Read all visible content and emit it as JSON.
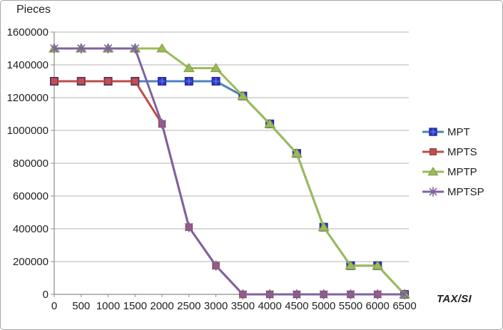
{
  "frame": {
    "background": "#ffffff",
    "border_color": "#a6a6a6",
    "gridline_color": "#b3b3b3",
    "axis_color": "#8c8c8c",
    "text_color": "#1f1f1f"
  },
  "chart_data": {
    "type": "line",
    "title": "",
    "ylabel": "Pieces",
    "xlabel": "TAX/SI",
    "x": [
      0,
      500,
      1000,
      1500,
      2000,
      2500,
      3000,
      3500,
      4000,
      4500,
      5000,
      5500,
      6000,
      6500
    ],
    "x_ticks": [
      0,
      500,
      1000,
      1500,
      2000,
      2500,
      3000,
      3500,
      4000,
      4500,
      5000,
      5500,
      6000,
      6500
    ],
    "y_ticks": [
      0,
      200000,
      400000,
      600000,
      800000,
      1000000,
      1200000,
      1400000,
      1600000
    ],
    "ylim": [
      0,
      1600000
    ],
    "grid": "horizontal",
    "legend_position": "right",
    "series": [
      {
        "name": "MPT",
        "color": "#4f81bd",
        "marker": "square-cross",
        "marker_fill": "#2b35c4",
        "marker_edge": "#1e2496",
        "marker_cross": "#5d74dc",
        "values": [
          1300000,
          1300000,
          1300000,
          1300000,
          1300000,
          1300000,
          1300000,
          1210000,
          1040000,
          860000,
          410000,
          175000,
          175000,
          0
        ]
      },
      {
        "name": "MPTS",
        "color": "#be4b48",
        "marker": "square",
        "marker_fill": "#c0504d",
        "marker_edge": "#8e3836",
        "values": [
          1300000,
          1300000,
          1300000,
          1300000,
          1040000,
          410000,
          175000,
          0,
          0,
          0,
          0,
          0,
          0,
          0
        ]
      },
      {
        "name": "MPTP",
        "color": "#9bbb59",
        "marker": "triangle",
        "marker_fill": "#9bbb59",
        "marker_edge": "#7e9c41",
        "values": [
          1500000,
          1500000,
          1500000,
          1500000,
          1500000,
          1380000,
          1380000,
          1210000,
          1040000,
          860000,
          410000,
          175000,
          175000,
          0
        ]
      },
      {
        "name": "MPTSP",
        "color": "#7e62a1",
        "marker": "asterisk",
        "marker_fill": "#7e62a1",
        "marker_edge": "#7e62a1",
        "values": [
          1500000,
          1500000,
          1500000,
          1500000,
          1040000,
          410000,
          175000,
          0,
          0,
          0,
          0,
          0,
          0,
          0
        ]
      }
    ]
  }
}
